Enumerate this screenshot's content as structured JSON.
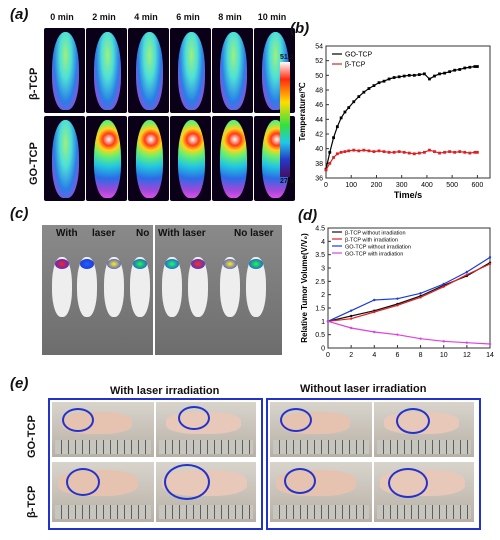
{
  "panels": {
    "a": {
      "label": "(a)",
      "times": [
        "0 min",
        "2 min",
        "4 min",
        "6 min",
        "8 min",
        "10 min"
      ],
      "rows": [
        "β-TCP",
        "GO-TCP"
      ],
      "colorbar_top": "51.2",
      "colorbar_bottom": "27.0"
    },
    "b": {
      "label": "(b)"
    },
    "c": {
      "label": "(c)",
      "group_labels": [
        "With",
        "laser",
        "No",
        "With laser",
        "No laser"
      ]
    },
    "d": {
      "label": "(d)"
    },
    "e": {
      "label": "(e)",
      "titles": [
        "With laser irradiation",
        "Without laser irradiation"
      ],
      "rows": [
        "GO-TCP",
        "β-TCP"
      ]
    }
  },
  "chart_data": [
    {
      "type": "line",
      "panel": "b",
      "xlabel": "Time/s",
      "ylabel": "Temperature/℃",
      "xlim": [
        0,
        650
      ],
      "ylim": [
        36,
        54
      ],
      "xticks": [
        0,
        100,
        200,
        300,
        400,
        500,
        600
      ],
      "yticks": [
        36,
        38,
        40,
        42,
        44,
        46,
        48,
        50,
        52,
        54
      ],
      "legend_position": "top-left",
      "series": [
        {
          "name": "GO-TCP",
          "color": "#000000",
          "x": [
            0,
            15,
            30,
            45,
            60,
            75,
            90,
            110,
            130,
            150,
            170,
            190,
            210,
            230,
            250,
            270,
            290,
            310,
            330,
            350,
            370,
            390,
            410,
            430,
            450,
            470,
            490,
            510,
            530,
            550,
            570,
            590,
            600
          ],
          "y": [
            37.2,
            39.5,
            41.5,
            43,
            44.2,
            45,
            45.6,
            46.4,
            47.1,
            47.7,
            48.2,
            48.6,
            49,
            49.2,
            49.5,
            49.7,
            49.8,
            49.9,
            50,
            50,
            50.1,
            50.2,
            49.5,
            49.9,
            50.2,
            50.3,
            50.5,
            50.7,
            50.8,
            51,
            51.1,
            51.2,
            51.2
          ]
        },
        {
          "name": "β-TCP",
          "color": "#e02020",
          "x": [
            0,
            15,
            30,
            45,
            60,
            75,
            90,
            110,
            130,
            150,
            170,
            190,
            210,
            230,
            250,
            270,
            290,
            310,
            330,
            350,
            370,
            390,
            410,
            430,
            450,
            470,
            490,
            510,
            530,
            550,
            570,
            590,
            600
          ],
          "y": [
            37.1,
            38,
            38.8,
            39.3,
            39.5,
            39.6,
            39.7,
            39.8,
            39.7,
            39.8,
            39.7,
            39.6,
            39.7,
            39.6,
            39.5,
            39.5,
            39.6,
            39.5,
            39.4,
            39.3,
            39.4,
            39.5,
            39.8,
            39.6,
            39.4,
            39.5,
            39.6,
            39.5,
            39.6,
            39.5,
            39.4,
            39.5,
            39.5
          ]
        }
      ]
    },
    {
      "type": "line",
      "panel": "d",
      "xlabel": "",
      "ylabel": "Relative Tumor Volume(V/V₀)",
      "xlim": [
        0,
        14
      ],
      "ylim": [
        0,
        4.5
      ],
      "xticks": [
        0,
        2,
        4,
        6,
        8,
        10,
        12,
        14
      ],
      "yticks": [
        0,
        0.5,
        1,
        1.5,
        2,
        2.5,
        3,
        3.5,
        4,
        4.5
      ],
      "legend_position": "top-left",
      "series": [
        {
          "name": "β-TCP without irradiation",
          "color": "#111111",
          "x": [
            0,
            2,
            4,
            6,
            8,
            10,
            12,
            14
          ],
          "y": [
            1.0,
            1.2,
            1.4,
            1.65,
            1.95,
            2.35,
            2.7,
            3.2
          ]
        },
        {
          "name": "β-TCP with irradiation",
          "color": "#e02020",
          "x": [
            0,
            2,
            4,
            6,
            8,
            10,
            12,
            14
          ],
          "y": [
            1.0,
            1.1,
            1.35,
            1.6,
            1.9,
            2.3,
            2.75,
            3.15
          ]
        },
        {
          "name": "GO-TCP without irradiation",
          "color": "#1a3be0",
          "x": [
            0,
            2,
            4,
            6,
            8,
            10,
            12,
            14
          ],
          "y": [
            1.0,
            1.4,
            1.8,
            1.85,
            2.05,
            2.4,
            2.85,
            3.4
          ]
        },
        {
          "name": "GO-TCP with irradiation",
          "color": "#e040e0",
          "x": [
            0,
            2,
            4,
            6,
            8,
            10,
            12,
            14
          ],
          "y": [
            1.0,
            0.75,
            0.6,
            0.5,
            0.35,
            0.25,
            0.2,
            0.15
          ]
        }
      ]
    }
  ]
}
